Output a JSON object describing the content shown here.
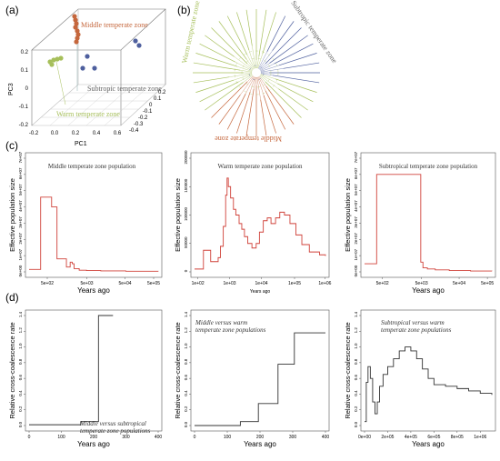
{
  "colors": {
    "middle": "#c5673d",
    "warm": "#a6bf5a",
    "subtropical": "#4e5f9e",
    "step_red": "#d0423a",
    "step_black": "#333333"
  },
  "panel_letters": [
    "(a)",
    "(b)",
    "(c)",
    "(d)"
  ],
  "panel_a": {
    "labels": {
      "middle": "Middle temperate zone",
      "subtropical": "Subtropic temperate zone",
      "warm": "Warm temperate zone"
    },
    "axis_titles": {
      "pc1": "PC1",
      "pc3": "PC3"
    },
    "pc3_ticks": [
      "0.2",
      "0.1",
      "0",
      "-0.1",
      "-0.2"
    ],
    "pc1_ticks": [
      "-0.2",
      "0.0",
      "0.2",
      "0.4",
      "0.6"
    ],
    "pc2_ticks": [
      "0.2",
      "0.1",
      "0",
      "-0.1",
      "-0.2",
      "-0.3",
      "-0.4"
    ]
  },
  "panel_b": {
    "labels": {
      "warm": "Warm temperate zone",
      "subtropical": "Subtropic temperate zone",
      "middle": "Middle temperate zone"
    }
  },
  "chart_data": [
    {
      "type": "line",
      "panel": "c1",
      "title": "Middle temperate zone population",
      "ylabel": "Effective population size",
      "xlabel": "Years ago",
      "x_ticks": [
        "5e+02",
        "5e+03",
        "5e+04",
        "5e+05"
      ],
      "y_ticks": [
        "0e+00",
        "1e+07",
        "2e+07",
        "3e+07",
        "4e+07",
        "5e+07",
        "6e+07",
        "7e+07"
      ],
      "ylim": [
        0,
        70000000
      ],
      "x_scale": "log",
      "x": [
        200,
        400,
        420,
        800,
        850,
        1100,
        1200,
        2000,
        2200,
        2600,
        2800,
        3200,
        3600,
        5000,
        8000,
        20000,
        100000,
        800000
      ],
      "values": [
        1500000,
        1500000,
        46000000,
        46000000,
        40000000,
        40000000,
        8000000,
        8000000,
        3000000,
        3000000,
        6000000,
        5000000,
        2000000,
        1000000,
        800000,
        600000,
        400000,
        300000
      ]
    },
    {
      "type": "line",
      "panel": "c2",
      "title": "Warm temperate zone population",
      "ylabel": "Effective population size",
      "xlabel": "Years ago",
      "x_ticks": [
        "1e+02",
        "1e+03",
        "1e+04",
        "1e+05",
        "1e+06"
      ],
      "y_ticks": [
        "0",
        "50000",
        "100000",
        "150000",
        "200000"
      ],
      "ylim": [
        0,
        200000
      ],
      "x_scale": "log",
      "x": [
        120,
        200,
        220,
        330,
        360,
        550,
        600,
        700,
        850,
        1000,
        1100,
        1200,
        1400,
        1700,
        2000,
        2500,
        3000,
        3600,
        4500,
        6000,
        8000,
        10000,
        13000,
        17000,
        22000,
        30000,
        40000,
        55000,
        80000,
        120000,
        180000,
        300000,
        600000,
        900000
      ],
      "values": [
        5000,
        5000,
        38000,
        38000,
        18000,
        18000,
        25000,
        45000,
        80000,
        135000,
        165000,
        150000,
        130000,
        110000,
        100000,
        85000,
        75000,
        62000,
        50000,
        42000,
        50000,
        70000,
        90000,
        95000,
        85000,
        95000,
        105000,
        100000,
        85000,
        65000,
        48000,
        35000,
        30000,
        28000
      ]
    },
    {
      "type": "line",
      "panel": "c3",
      "title": "Subtropical temperate zone population",
      "ylabel": "Effective population size",
      "xlabel": "Years ago",
      "x_ticks": [
        "5e+02",
        "5e+03",
        "5e+04",
        "5e+05"
      ],
      "y_ticks": [
        "0e+00",
        "1e+07",
        "2e+07",
        "3e+07",
        "4e+07",
        "5e+07",
        "6e+07",
        "7e+07"
      ],
      "ylim": [
        0,
        70000000
      ],
      "x_scale": "log",
      "x": [
        200,
        420,
        440,
        7500,
        7800,
        9000,
        12000,
        20000,
        50000,
        200000,
        800000
      ],
      "values": [
        5000000,
        5000000,
        60000000,
        60000000,
        6000000,
        2500000,
        1800000,
        1200000,
        800000,
        500000,
        400000
      ]
    },
    {
      "type": "line",
      "panel": "d1",
      "annotation": "Middle versus subtropical temperate zone populations",
      "ylabel": "Relative cross-coalescence rate",
      "xlabel": "Years ago",
      "x_ticks": [
        "0",
        "100",
        "200",
        "300",
        "400"
      ],
      "y_ticks": [
        "0.0",
        "0.2",
        "0.4",
        "0.6",
        "0.8",
        "1.0",
        "1.2",
        "1.4"
      ],
      "xlim": [
        0,
        400
      ],
      "ylim": [
        0,
        1.4
      ],
      "x": [
        0,
        160,
        160,
        215,
        215,
        260
      ],
      "values": [
        0.01,
        0.01,
        0.05,
        0.05,
        1.4,
        1.4
      ]
    },
    {
      "type": "line",
      "panel": "d2",
      "annotation": "Middle versus warm temperate zone populations",
      "ylabel": "Relative cross-coalescence rate",
      "xlabel": "Years ago",
      "x_ticks": [
        "0",
        "100",
        "200",
        "300",
        "400"
      ],
      "y_ticks": [
        "0.0",
        "0.2",
        "0.4",
        "0.6",
        "0.8",
        "1.0",
        "1.2",
        "1.4"
      ],
      "xlim": [
        0,
        400
      ],
      "ylim": [
        0,
        1.4
      ],
      "x": [
        0,
        140,
        140,
        195,
        195,
        255,
        255,
        305,
        305,
        400
      ],
      "values": [
        0.0,
        0.0,
        0.05,
        0.05,
        0.28,
        0.28,
        0.78,
        0.78,
        1.18,
        1.18
      ]
    },
    {
      "type": "line",
      "panel": "d3",
      "annotation": "Subtropical versus warm temperate zone populations",
      "ylabel": "Relative cross-coalescence rate",
      "xlabel": "Years ago",
      "x_ticks": [
        "0e+00",
        "2e+05",
        "4e+05",
        "6e+05",
        "8e+05",
        "1e+06"
      ],
      "y_ticks": [
        "0.0",
        "0.2",
        "0.4",
        "0.6",
        "0.8",
        "1.0",
        "1.2",
        "1.4"
      ],
      "xlim": [
        0,
        1100000
      ],
      "ylim": [
        0,
        1.4
      ],
      "x": [
        0,
        15000,
        30000,
        50000,
        70000,
        90000,
        110000,
        130000,
        160000,
        200000,
        250000,
        300000,
        350000,
        400000,
        450000,
        500000,
        550000,
        600000,
        700000,
        800000,
        900000,
        1000000,
        1100000
      ],
      "values": [
        0.05,
        0.55,
        0.75,
        0.6,
        0.3,
        0.15,
        0.3,
        0.5,
        0.65,
        0.75,
        0.85,
        0.95,
        1.0,
        0.95,
        0.85,
        0.72,
        0.6,
        0.52,
        0.5,
        0.47,
        0.44,
        0.41,
        0.39
      ]
    }
  ]
}
